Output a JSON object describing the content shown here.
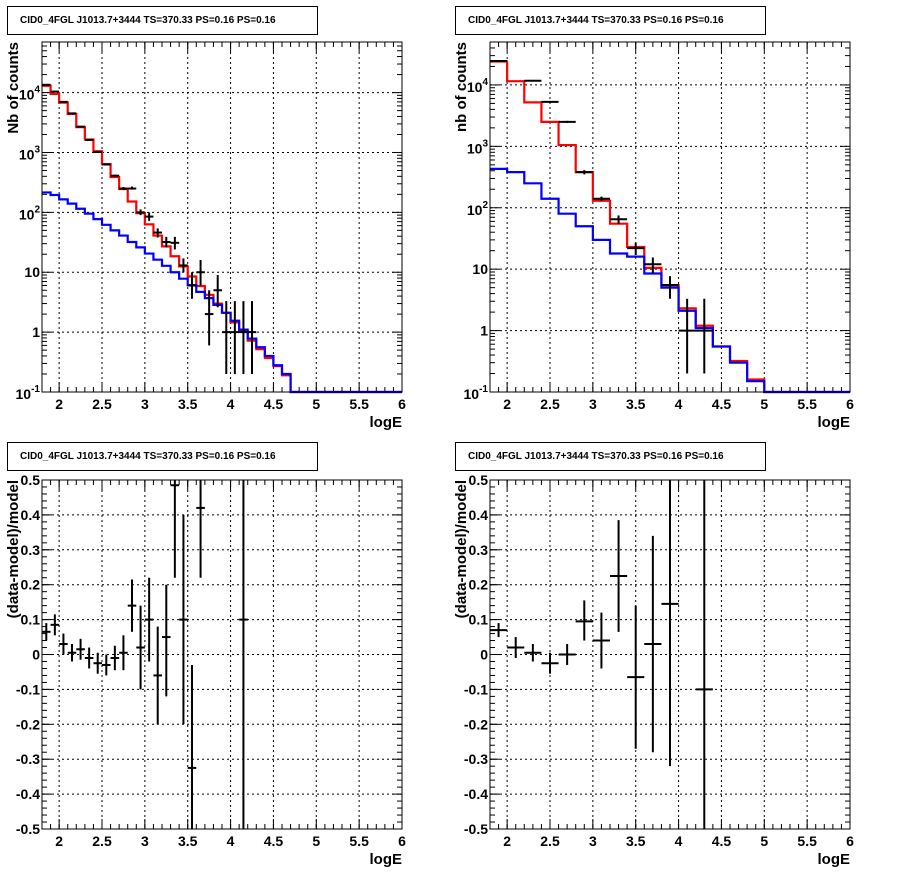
{
  "chart_data": [
    {
      "panel": "top-left",
      "type": "line",
      "title": "CID0_4FGL J1013.7+3444 TS=370.33 PS=0.16 PS=0.16",
      "xlabel": "logE",
      "ylabel": "Nb of counts",
      "xlim": [
        1.8,
        6.0
      ],
      "ylim": [
        0.1,
        70000
      ],
      "yscale": "log",
      "grid": true,
      "xticks": [
        2,
        2.5,
        3,
        3.5,
        4,
        4.5,
        5,
        5.5,
        6
      ],
      "xtick_labels": [
        "2",
        "2.5",
        "3",
        "3.5",
        "4",
        "4.5",
        "5",
        "5.5",
        "6"
      ],
      "yticks": [
        0.1,
        1,
        10,
        100,
        1000,
        10000
      ],
      "ytick_labels": [
        "10-1",
        "1",
        "10",
        "10 2",
        "10 3",
        "10 4"
      ],
      "bin_edges": [
        1.8,
        1.9,
        2.0,
        2.1,
        2.2,
        2.3,
        2.4,
        2.5,
        2.6,
        2.7,
        2.8,
        2.9,
        3.0,
        3.1,
        3.2,
        3.3,
        3.4,
        3.5,
        3.6,
        3.7,
        3.8,
        3.9,
        4.0,
        4.1,
        4.2,
        4.3,
        4.4,
        4.5,
        4.6,
        4.7,
        4.8,
        4.9,
        5.0,
        5.1,
        5.2,
        5.3,
        5.4,
        5.5,
        5.6,
        5.7,
        5.8,
        5.9,
        6.0
      ],
      "series": [
        {
          "name": "total model",
          "color": "#ff0000",
          "values": [
            13000,
            9500,
            6800,
            4400,
            2650,
            1650,
            1050,
            640,
            390,
            245,
            152,
            97,
            63,
            41,
            27,
            18.5,
            12.5,
            8.5,
            5.9,
            4.2,
            3.0,
            2.1,
            1.45,
            1.02,
            0.72,
            0.52,
            0.37,
            0.27,
            0.19,
            0.1,
            0.1,
            0.1,
            0.1,
            0.1,
            0.1,
            0.1,
            0.1,
            0.1,
            0.1,
            0.1,
            0.1,
            0.1
          ]
        },
        {
          "name": "background model",
          "color": "#0000ff",
          "values": [
            215,
            195,
            165,
            140,
            115,
            95,
            77,
            62,
            50,
            41,
            32,
            26,
            20.5,
            16.2,
            12.8,
            10,
            7.8,
            6.1,
            4.7,
            3.7,
            2.85,
            2.1,
            1.55,
            1.1,
            0.78,
            0.56,
            0.4,
            0.28,
            0.2,
            0.1,
            0.1,
            0.1,
            0.1,
            0.1,
            0.1,
            0.1,
            0.1,
            0.1,
            0.1,
            0.1,
            0.1,
            0.1
          ]
        }
      ],
      "points": {
        "name": "data",
        "color": "#000000",
        "x": [
          1.85,
          1.95,
          2.05,
          2.15,
          2.25,
          2.35,
          2.45,
          2.55,
          2.65,
          2.75,
          2.85,
          2.95,
          3.05,
          3.15,
          3.25,
          3.35,
          3.45,
          3.55,
          3.65,
          3.75,
          3.85,
          3.95,
          4.05,
          4.15,
          4.25
        ],
        "y": [
          13500,
          10400,
          7000,
          4500,
          2700,
          1620,
          1020,
          630,
          410,
          250,
          250,
          100,
          85,
          46,
          32,
          31,
          13,
          6,
          10,
          2,
          5,
          1,
          1,
          1,
          1
        ],
        "ylow": [
          13300,
          10200,
          6900,
          4420,
          2650,
          1590,
          1000,
          612,
          395,
          235,
          240,
          90,
          72,
          38,
          26,
          24,
          10,
          3.6,
          6,
          0.6,
          2.6,
          0.2,
          0.2,
          0.2,
          0.2
        ],
        "yhigh": [
          13700,
          10600,
          7100,
          4580,
          2750,
          1650,
          1040,
          648,
          425,
          265,
          270,
          112,
          100,
          54,
          39,
          39,
          17,
          10,
          16,
          5,
          9,
          3.3,
          3.3,
          3.3,
          3.3
        ]
      }
    },
    {
      "panel": "top-right",
      "type": "line",
      "title": "CID0_4FGL J1013.7+3444 TS=370.33 PS=0.16 PS=0.16",
      "xlabel": "logE",
      "ylabel": "nb of counts",
      "xlim": [
        1.8,
        6.0
      ],
      "ylim": [
        0.1,
        50000
      ],
      "yscale": "log",
      "grid": true,
      "xticks": [
        2,
        2.5,
        3,
        3.5,
        4,
        4.5,
        5,
        5.5,
        6
      ],
      "xtick_labels": [
        "2",
        "2.5",
        "3",
        "3.5",
        "4",
        "4.5",
        "5",
        "5.5",
        "6"
      ],
      "yticks": [
        0.1,
        1,
        10,
        100,
        1000,
        10000
      ],
      "ytick_labels": [
        "10-1",
        "1",
        "10",
        "10 2",
        "10 3",
        "10 4"
      ],
      "bin_edges": [
        1.8,
        2.0,
        2.2,
        2.4,
        2.6,
        2.8,
        3.0,
        3.2,
        3.4,
        3.6,
        3.8,
        4.0,
        4.2,
        4.4,
        4.6,
        4.8,
        5.0,
        5.2,
        5.4,
        5.6,
        5.8,
        6.0
      ],
      "series": [
        {
          "name": "total model",
          "color": "#ff0000",
          "values": [
            24000,
            11500,
            5200,
            2500,
            1050,
            380,
            130,
            55,
            23,
            10.5,
            5.5,
            2.3,
            1.2,
            0.55,
            0.32,
            0.16,
            0.1,
            0.1,
            0.1,
            0.1,
            0.1
          ]
        },
        {
          "name": "background model",
          "color": "#0000ff",
          "values": [
            430,
            380,
            250,
            140,
            80,
            50,
            30,
            18,
            16,
            8.5,
            5,
            2.1,
            1.1,
            0.55,
            0.3,
            0.15,
            0.1,
            0.1,
            0.1,
            0.1,
            0.1
          ]
        }
      ],
      "points": {
        "name": "data",
        "color": "#000000",
        "x": [
          1.9,
          2.3,
          2.5,
          2.7,
          2.9,
          3.1,
          3.3,
          3.5,
          3.7,
          3.9,
          4.1,
          4.3
        ],
        "y": [
          24500,
          11700,
          5300,
          2500,
          380,
          140,
          65,
          22,
          12,
          5.5,
          1,
          1
        ],
        "ylow": [
          24000,
          11400,
          5150,
          2400,
          350,
          128,
          55,
          17,
          8.5,
          3.3,
          0.2,
          0.2
        ],
        "yhigh": [
          25000,
          12000,
          5450,
          2600,
          410,
          152,
          75,
          27,
          15.5,
          7.7,
          3.3,
          3.3
        ]
      }
    },
    {
      "panel": "bottom-left",
      "type": "scatter",
      "title": "CID0_4FGL J1013.7+3444 TS=370.33 PS=0.16 PS=0.16",
      "xlabel": "logE",
      "ylabel": "(data-model)/model",
      "xlim": [
        1.8,
        6.0
      ],
      "ylim": [
        -0.5,
        0.5
      ],
      "grid": true,
      "xticks": [
        2,
        2.5,
        3,
        3.5,
        4,
        4.5,
        5,
        5.5,
        6
      ],
      "xtick_labels": [
        "2",
        "2.5",
        "3",
        "3.5",
        "4",
        "4.5",
        "5",
        "5.5",
        "6"
      ],
      "yticks": [
        -0.5,
        -0.4,
        -0.3,
        -0.2,
        -0.1,
        0,
        0.1,
        0.2,
        0.3,
        0.4,
        0.5
      ],
      "ytick_labels": [
        "-0.5",
        "-0.4",
        "-0.3",
        "-0.2",
        "-0.1",
        "0",
        "0.1",
        "0.2",
        "0.3",
        "0.4",
        "0.5"
      ],
      "points": {
        "name": "residuals",
        "color": "#000000",
        "xwidth": 0.05,
        "x": [
          1.85,
          1.95,
          2.05,
          2.15,
          2.25,
          2.35,
          2.45,
          2.55,
          2.65,
          2.75,
          2.85,
          2.95,
          3.05,
          3.15,
          3.25,
          3.35,
          3.45,
          3.55,
          3.65,
          4.15
        ],
        "y": [
          0.065,
          0.085,
          0.03,
          0.005,
          0.015,
          -0.01,
          -0.025,
          -0.03,
          -0.01,
          0.005,
          0.14,
          0.02,
          0.1,
          -0.06,
          0.05,
          0.485,
          0.1,
          -0.325,
          0.42,
          0.1
        ],
        "ylow": [
          0.04,
          0.055,
          0.0,
          -0.02,
          -0.015,
          -0.04,
          -0.055,
          -0.06,
          -0.045,
          -0.045,
          0.065,
          -0.1,
          -0.02,
          -0.2,
          -0.12,
          0.22,
          -0.2,
          -0.62,
          0.22,
          -0.5
        ],
        "yhigh": [
          0.09,
          0.115,
          0.06,
          0.03,
          0.045,
          0.02,
          0.005,
          0.0,
          0.025,
          0.055,
          0.215,
          0.14,
          0.22,
          0.08,
          0.2,
          0.5,
          0.4,
          -0.03,
          0.5,
          0.5
        ]
      }
    },
    {
      "panel": "bottom-right",
      "type": "scatter",
      "title": "CID0_4FGL J1013.7+3444 TS=370.33 PS=0.16 PS=0.16",
      "xlabel": "logE",
      "ylabel": "(data-model)/model",
      "xlim": [
        1.8,
        6.0
      ],
      "ylim": [
        -0.5,
        0.5
      ],
      "grid": true,
      "xticks": [
        2,
        2.5,
        3,
        3.5,
        4,
        4.5,
        5,
        5.5,
        6
      ],
      "xtick_labels": [
        "2",
        "2.5",
        "3",
        "3.5",
        "4",
        "4.5",
        "5",
        "5.5",
        "6"
      ],
      "yticks": [
        -0.5,
        -0.4,
        -0.3,
        -0.2,
        -0.1,
        0,
        0.1,
        0.2,
        0.3,
        0.4,
        0.5
      ],
      "ytick_labels": [
        "-0.5",
        "-0.4",
        "-0.3",
        "-0.2",
        "-0.1",
        "0",
        "0.1",
        "0.2",
        "0.3",
        "0.4",
        "0.5"
      ],
      "points": {
        "name": "residuals",
        "color": "#000000",
        "xwidth": 0.1,
        "x": [
          1.9,
          2.1,
          2.3,
          2.5,
          2.7,
          2.9,
          3.1,
          3.3,
          3.5,
          3.7,
          3.9,
          4.3
        ],
        "y": [
          0.07,
          0.02,
          0.005,
          -0.025,
          0.0,
          0.095,
          0.04,
          0.225,
          -0.065,
          0.03,
          0.145,
          -0.1
        ],
        "ylow": [
          0.05,
          -0.01,
          -0.02,
          -0.055,
          -0.03,
          0.04,
          -0.04,
          0.065,
          -0.27,
          -0.28,
          -0.32,
          -0.5
        ],
        "yhigh": [
          0.09,
          0.05,
          0.03,
          0.005,
          0.03,
          0.155,
          0.12,
          0.385,
          0.14,
          0.34,
          0.5,
          0.5
        ]
      }
    }
  ]
}
